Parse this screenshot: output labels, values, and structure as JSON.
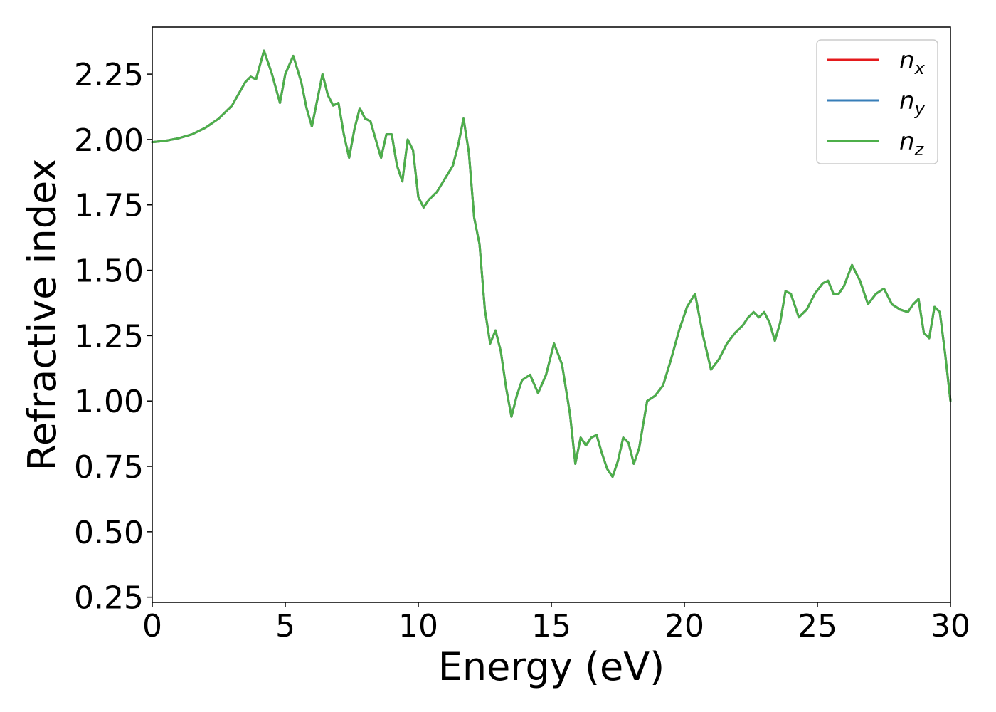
{
  "chart_data": {
    "type": "line",
    "xlabel": "Energy (eV)",
    "ylabel": "Refractive index",
    "xlim": [
      0,
      30
    ],
    "ylim": [
      0.23,
      2.43
    ],
    "xticks": [
      "0",
      "5",
      "10",
      "15",
      "20",
      "25",
      "30"
    ],
    "yticks": [
      "0.25",
      "0.50",
      "0.75",
      "1.00",
      "1.25",
      "1.50",
      "1.75",
      "2.00",
      "2.25"
    ],
    "grid": false,
    "legend_position": "top-right",
    "legend": [
      {
        "base": "n",
        "sub": "x",
        "color": "#e41a1c"
      },
      {
        "base": "n",
        "sub": "y",
        "color": "#377eb8"
      },
      {
        "base": "n",
        "sub": "z",
        "color": "#4daf4a"
      }
    ],
    "x": [
      0,
      0.5,
      1.0,
      1.5,
      2.0,
      2.5,
      3.0,
      3.5,
      3.7,
      3.9,
      4.2,
      4.5,
      4.8,
      5.0,
      5.3,
      5.6,
      5.8,
      6.0,
      6.2,
      6.4,
      6.6,
      6.8,
      7.0,
      7.2,
      7.4,
      7.6,
      7.8,
      8.0,
      8.2,
      8.4,
      8.6,
      8.8,
      9.0,
      9.2,
      9.4,
      9.6,
      9.8,
      10.0,
      10.2,
      10.4,
      10.7,
      11.0,
      11.3,
      11.5,
      11.7,
      11.9,
      12.1,
      12.3,
      12.5,
      12.7,
      12.9,
      13.1,
      13.3,
      13.5,
      13.7,
      13.9,
      14.2,
      14.5,
      14.8,
      15.1,
      15.4,
      15.7,
      15.9,
      16.1,
      16.3,
      16.5,
      16.7,
      16.9,
      17.1,
      17.3,
      17.5,
      17.7,
      17.9,
      18.1,
      18.3,
      18.6,
      18.9,
      19.2,
      19.5,
      19.8,
      20.1,
      20.4,
      20.7,
      21.0,
      21.3,
      21.6,
      21.9,
      22.2,
      22.4,
      22.6,
      22.8,
      23.0,
      23.2,
      23.4,
      23.6,
      23.8,
      24.0,
      24.3,
      24.6,
      24.9,
      25.2,
      25.4,
      25.6,
      25.8,
      26.0,
      26.3,
      26.6,
      26.9,
      27.2,
      27.5,
      27.8,
      28.1,
      28.4,
      28.6,
      28.8,
      29.0,
      29.2,
      29.4,
      29.6,
      29.8,
      30.0
    ],
    "series": [
      {
        "name": "n_x",
        "color": "#e41a1c"
      },
      {
        "name": "n_y",
        "color": "#377eb8"
      },
      {
        "name": "n_z",
        "color": "#4daf4a"
      }
    ],
    "values": [
      1.99,
      1.995,
      2.005,
      2.02,
      2.045,
      2.08,
      2.13,
      2.22,
      2.24,
      2.23,
      2.34,
      2.25,
      2.14,
      2.25,
      2.32,
      2.22,
      2.12,
      2.05,
      2.15,
      2.25,
      2.17,
      2.13,
      2.14,
      2.02,
      1.93,
      2.04,
      2.12,
      2.08,
      2.07,
      2.0,
      1.93,
      2.02,
      2.02,
      1.9,
      1.84,
      2.0,
      1.96,
      1.78,
      1.74,
      1.77,
      1.8,
      1.85,
      1.9,
      1.98,
      2.08,
      1.95,
      1.7,
      1.6,
      1.35,
      1.22,
      1.27,
      1.19,
      1.05,
      0.94,
      1.02,
      1.08,
      1.1,
      1.03,
      1.1,
      1.22,
      1.14,
      0.95,
      0.76,
      0.86,
      0.83,
      0.86,
      0.87,
      0.8,
      0.74,
      0.71,
      0.77,
      0.86,
      0.84,
      0.76,
      0.82,
      1.0,
      1.02,
      1.06,
      1.16,
      1.27,
      1.36,
      1.41,
      1.25,
      1.12,
      1.16,
      1.22,
      1.26,
      1.29,
      1.32,
      1.34,
      1.32,
      1.34,
      1.3,
      1.23,
      1.3,
      1.42,
      1.41,
      1.32,
      1.35,
      1.41,
      1.45,
      1.46,
      1.41,
      1.41,
      1.44,
      1.52,
      1.46,
      1.37,
      1.41,
      1.43,
      1.37,
      1.35,
      1.34,
      1.37,
      1.39,
      1.26,
      1.24,
      1.36,
      1.34,
      1.18,
      1.0
    ]
  }
}
